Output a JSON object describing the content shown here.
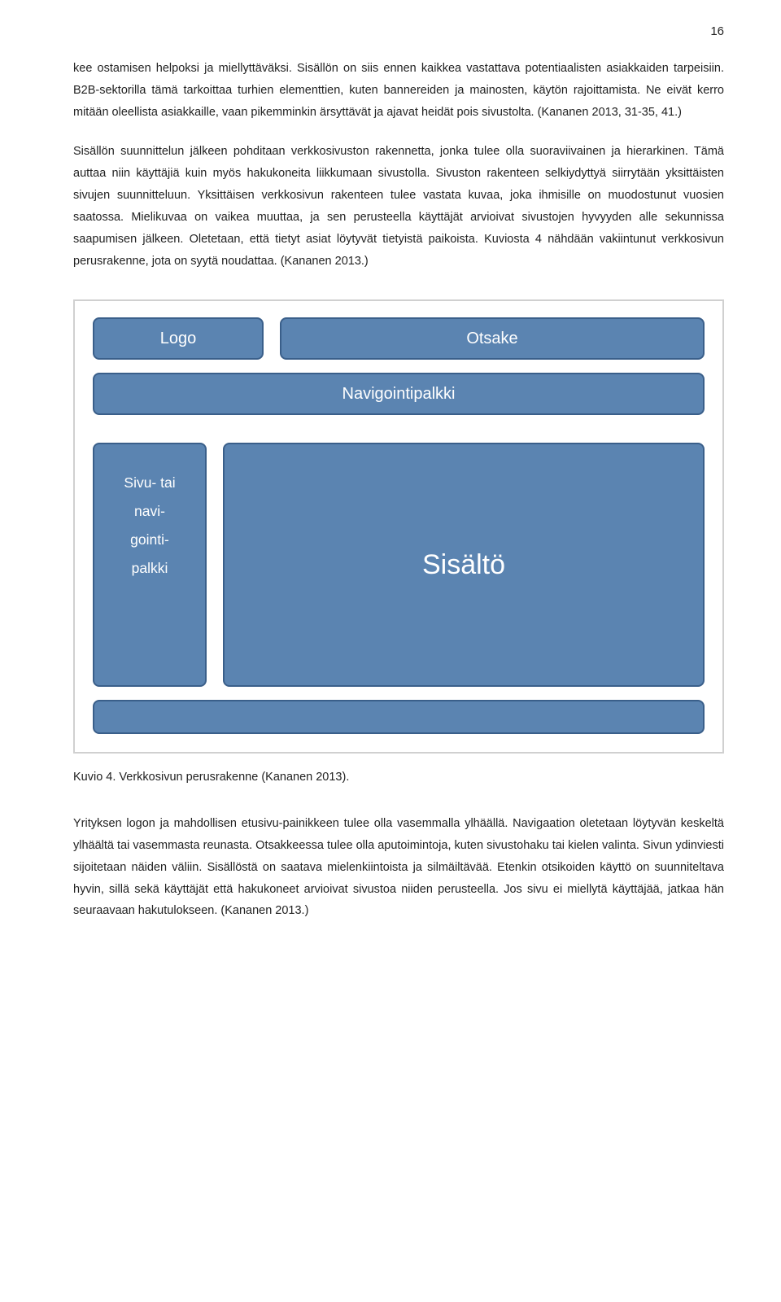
{
  "page_number": "16",
  "paragraphs": {
    "p1": "kee ostamisen helpoksi ja miellyttäväksi. Sisällön on siis ennen kaikkea vastattava potentiaalisten asiakkaiden tarpeisiin. B2B-sektorilla tämä tarkoittaa turhien elementtien, kuten bannereiden ja mainosten, käytön rajoittamista. Ne eivät kerro mitään oleellista asiakkaille, vaan pikemminkin ärsyttävät ja ajavat heidät pois sivustolta. (Kananen 2013, 31-35, 41.)",
    "p2": "Sisällön suunnittelun jälkeen pohditaan verkkosivuston rakennetta, jonka tulee olla suoraviivainen ja hierarkinen. Tämä auttaa niin käyttäjiä kuin myös hakukoneita liikkumaan sivustolla. Sivuston rakenteen selkiydyttyä siirrytään yksittäisten sivujen suunnitteluun. Yksittäisen verkkosivun rakenteen tulee vastata kuvaa, joka ihmisille on muodostunut vuosien saatossa. Mielikuvaa on vaikea muuttaa, ja sen perusteella käyttäjät arvioivat sivustojen hyvyyden alle sekunnissa saapumisen jälkeen. Oletetaan, että tietyt asiat löytyvät tietyistä paikoista. Kuviosta 4 nähdään vakiintunut verkkosivun perusrakenne, jota on syytä noudattaa. (Kananen 2013.)",
    "p3": "Yrityksen logon ja mahdollisen etusivu-painikkeen tulee olla vasemmalla ylhäällä. Navigaation oletetaan löytyvän keskeltä ylhäältä tai vasemmasta reunasta. Otsakkeessa tulee olla aputoimintoja, kuten sivustohaku tai kielen valinta. Sivun ydinviesti sijoitetaan näiden väliin. Sisällöstä on saatava mielenkiintoista ja silmäiltävää. Etenkin otsikoiden käyttö on suunniteltava hyvin, sillä sekä käyttäjät että hakukoneet arvioivat sivustoa niiden perusteella. Jos sivu ei miellytä käyttäjää, jatkaa hän seuraavaan hakutulokseen. (Kananen 2013.)"
  },
  "diagram": {
    "logo": "Logo",
    "otsake": "Otsake",
    "nav": "Navigointipalkki",
    "side_l1": "Sivu- tai",
    "side_l2": "navi-",
    "side_l3": "gointi-",
    "side_l4": "palkki",
    "content": "Sisältö",
    "block_fill": "#5b84b1",
    "block_border": "#3a5f8a",
    "frame_border": "#d0d0d0",
    "text_color": "#ffffff"
  },
  "caption": "Kuvio 4. Verkkosivun perusrakenne (Kananen 2013)."
}
